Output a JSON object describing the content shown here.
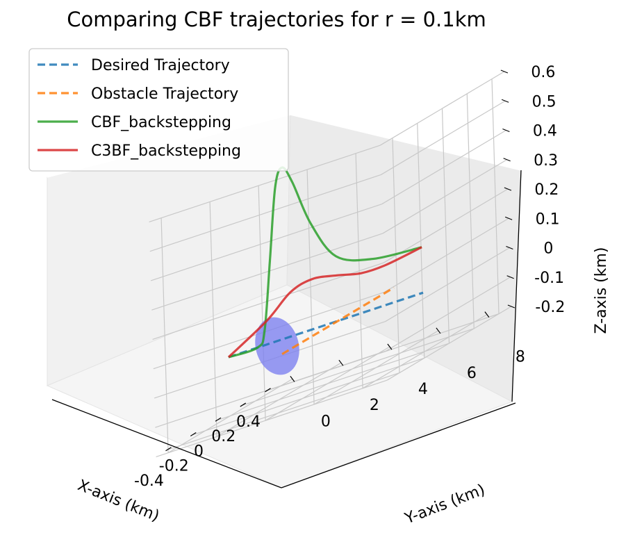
{
  "chart_data": {
    "type": "line",
    "title": "Comparing CBF trajectories for r = 0.1km",
    "xlabel": "X-axis (km)",
    "ylabel": "Y-axis (km)",
    "zlabel": "Z-axis (km)",
    "xlim": [
      -0.5,
      0.5
    ],
    "ylim": [
      -0.5,
      9
    ],
    "zlim": [
      -0.2,
      0.6
    ],
    "x_ticks": [
      "-0.4",
      "-0.2",
      "0",
      "0.2",
      "0.4"
    ],
    "y_ticks": [
      "0",
      "2",
      "4",
      "6",
      "8"
    ],
    "z_ticks": [
      "-0.2",
      "-0.1",
      "0",
      "0.1",
      "0.2",
      "0.3",
      "0.4",
      "0.5",
      "0.6"
    ],
    "legend_position": "top-left",
    "series": [
      {
        "name": "Desired Trajectory",
        "style": "dashed",
        "color": "#1f77b4",
        "points": [
          [
            0,
            0,
            0
          ],
          [
            0,
            8,
            0
          ]
        ]
      },
      {
        "name": "Obstacle Trajectory",
        "style": "dashed",
        "color": "#ff7f0e",
        "points": [
          [
            -0.45,
            4.5,
            0
          ],
          [
            0.45,
            4.5,
            0
          ]
        ]
      },
      {
        "name": "CBF_backstepping",
        "style": "solid",
        "color": "#2ca02c",
        "points": [
          [
            0,
            0,
            0
          ],
          [
            0,
            1.2,
            0
          ],
          [
            0,
            1.5,
            0.05
          ],
          [
            0,
            1.8,
            0.28
          ],
          [
            0,
            2.1,
            0.52
          ],
          [
            0,
            2.4,
            0.58
          ],
          [
            0,
            2.8,
            0.52
          ],
          [
            0,
            3.5,
            0.36
          ],
          [
            0,
            4.5,
            0.22
          ],
          [
            0,
            6,
            0.17
          ],
          [
            0,
            8,
            0.155
          ]
        ]
      },
      {
        "name": "C3BF_backstepping",
        "style": "solid",
        "color": "#d62728",
        "points": [
          [
            0,
            0,
            0
          ],
          [
            0,
            1.6,
            0.08
          ],
          [
            0,
            2.6,
            0.15
          ],
          [
            0,
            3.5,
            0.17
          ],
          [
            0,
            4.5,
            0.155
          ],
          [
            0,
            5.5,
            0.135
          ],
          [
            0,
            6.5,
            0.135
          ],
          [
            0,
            8,
            0.155
          ]
        ]
      }
    ],
    "obstacle_color": "#7b7ff0"
  }
}
